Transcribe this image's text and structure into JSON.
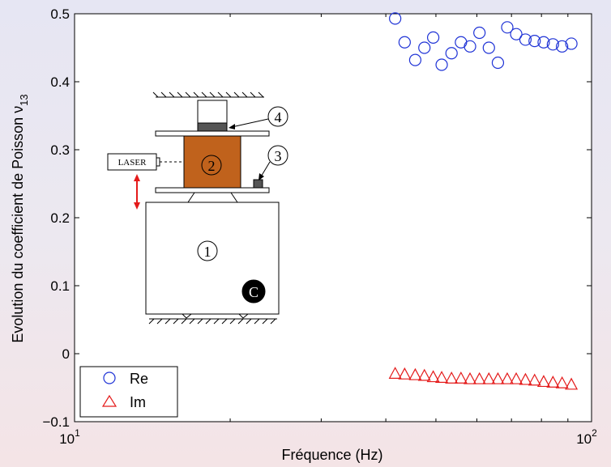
{
  "chart_data": {
    "type": "scatter",
    "xlabel": "Fréquence (Hz)",
    "ylabel": "Evolution du coefficient de Poisson ν",
    "ylabel_subscript": "13",
    "x_scale": "log",
    "xlim": [
      10,
      100
    ],
    "ylim": [
      -0.1,
      0.5
    ],
    "x_tick_labels": [
      {
        "base": "10",
        "exp": "1"
      },
      {
        "base": "10",
        "exp": "2"
      }
    ],
    "y_ticks": [
      "−0.1",
      "0",
      "0.1",
      "0.2",
      "0.3",
      "0.4",
      "0.5"
    ],
    "grid": false,
    "legend_position": "bottom-left",
    "series": [
      {
        "name": "Re",
        "color": "#1f33d6",
        "marker": "circle",
        "x": [
          41.7,
          43.5,
          45.6,
          47.5,
          49.4,
          51.3,
          53.6,
          55.9,
          58.2,
          60.7,
          63.3,
          65.9,
          68.7,
          71.5,
          74.5,
          77.6,
          80.8,
          84.2,
          87.7,
          91.4
        ],
        "y": [
          0.493,
          0.458,
          0.432,
          0.45,
          0.465,
          0.425,
          0.442,
          0.458,
          0.452,
          0.472,
          0.45,
          0.428,
          0.48,
          0.47,
          0.462,
          0.46,
          0.458,
          0.455,
          0.452,
          0.456
        ]
      },
      {
        "name": "Im",
        "color": "#e41a1a",
        "marker": "triangle",
        "x": [
          41.7,
          43.5,
          45.6,
          47.5,
          49.4,
          51.3,
          53.6,
          55.9,
          58.2,
          60.7,
          63.3,
          65.9,
          68.7,
          71.5,
          74.5,
          77.6,
          80.8,
          84.2,
          87.7,
          91.4
        ],
        "y": [
          -0.029,
          -0.03,
          -0.031,
          -0.032,
          -0.034,
          -0.035,
          -0.036,
          -0.036,
          -0.037,
          -0.037,
          -0.037,
          -0.037,
          -0.037,
          -0.037,
          -0.038,
          -0.039,
          -0.041,
          -0.042,
          -0.043,
          -0.045
        ]
      }
    ]
  },
  "inset": {
    "laser_label": "LASER",
    "markers": [
      "1",
      "2",
      "3",
      "4"
    ],
    "corner_badge": "C",
    "colors": {
      "sample": "#c0621c",
      "arrow": "#e41a1a"
    }
  }
}
